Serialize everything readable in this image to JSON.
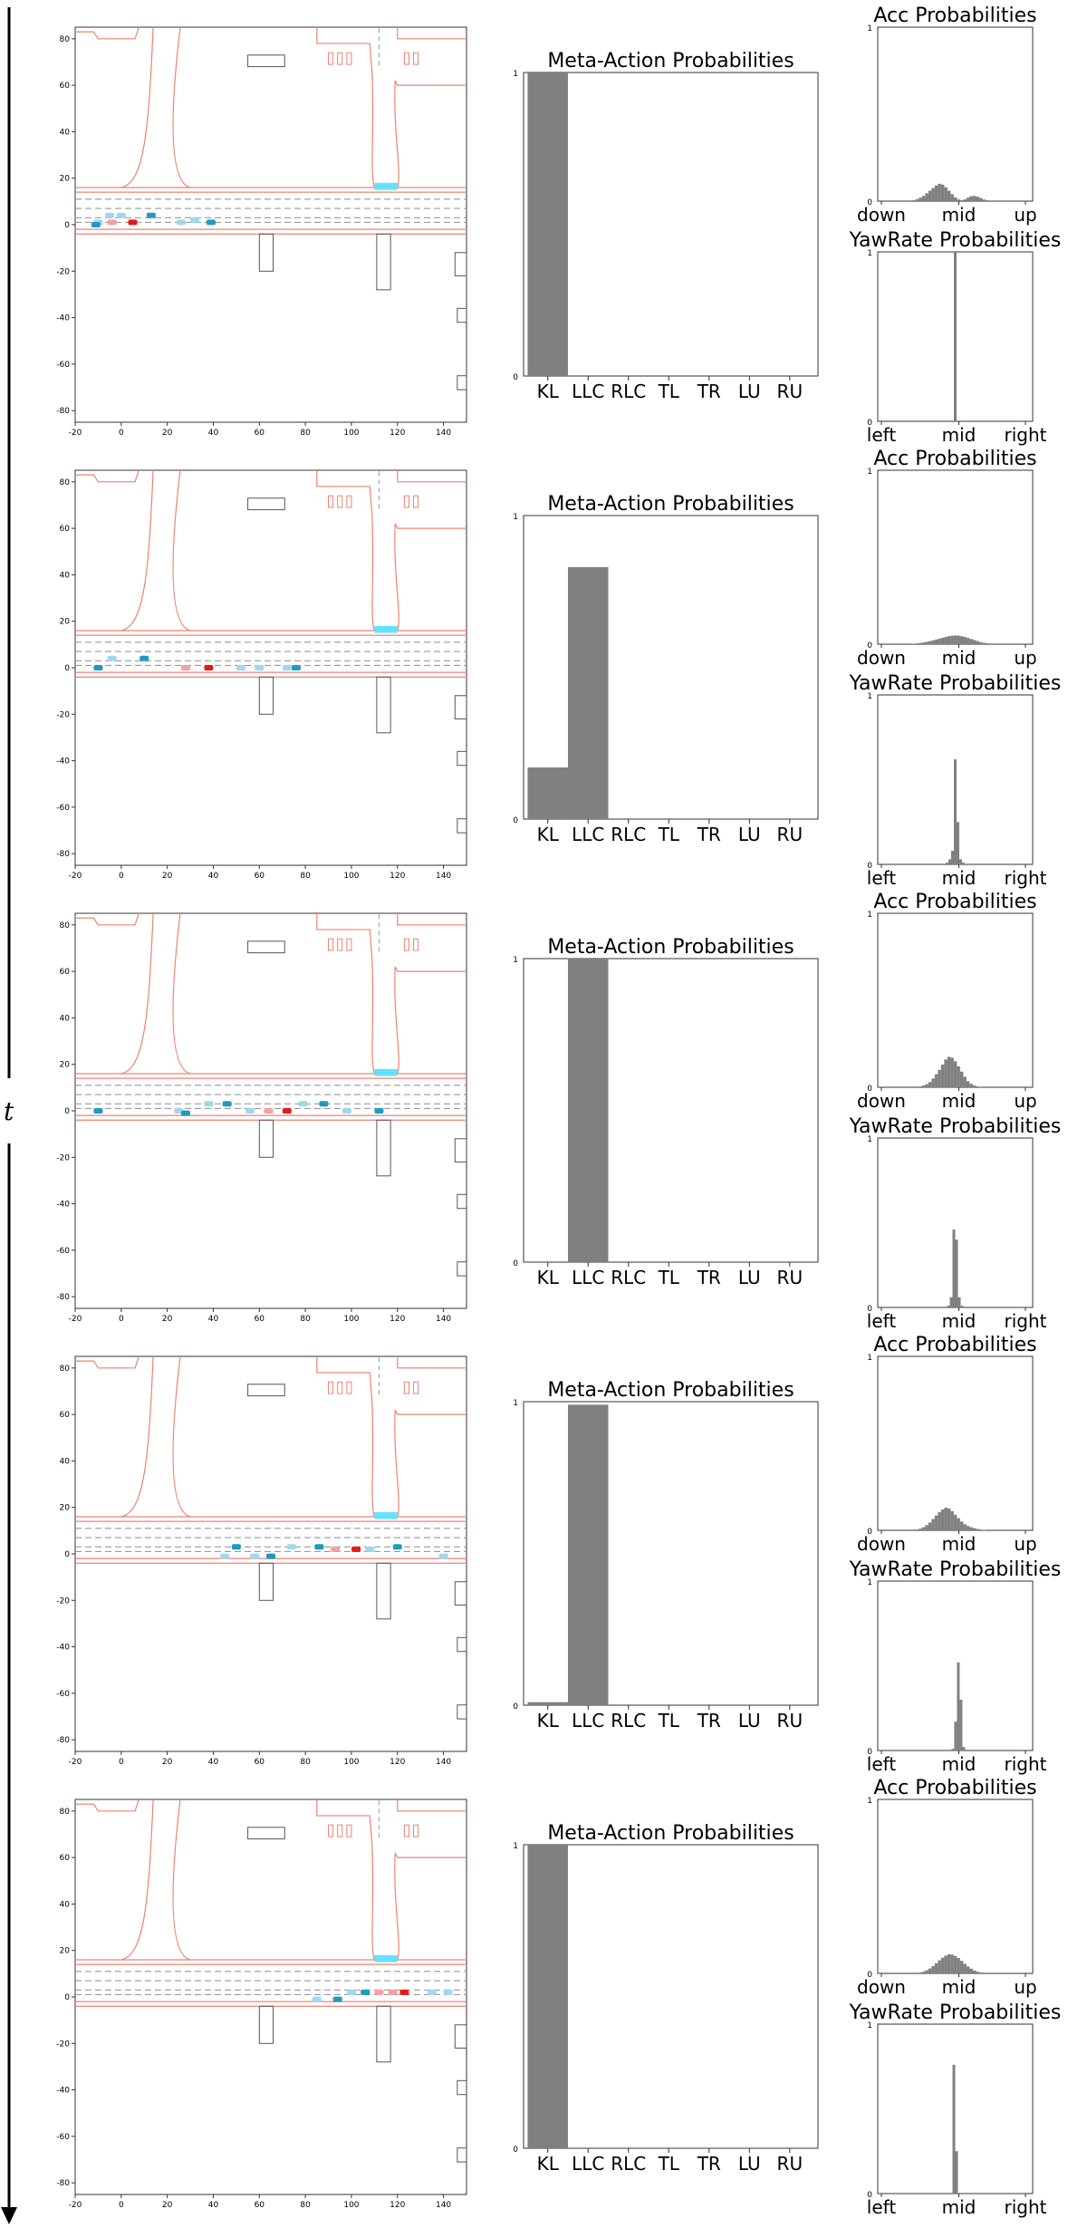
{
  "time_axis_label": "t",
  "colors": {
    "bar": "#808080",
    "road": "#f08070",
    "lane": "#999999",
    "ego": "#e41a1c",
    "ego_light": "#f4a0a0",
    "vehicle": "#1f9bbf",
    "vehicle_light": "#9fd8ee",
    "goal": "#66e0ff",
    "obstacle": "#555555"
  },
  "map_axes": {
    "x_ticks": [
      "-20",
      "0",
      "20",
      "40",
      "60",
      "80",
      "100",
      "120",
      "140"
    ],
    "y_ticks": [
      "80",
      "60",
      "40",
      "20",
      "0",
      "-20",
      "-40",
      "-60",
      "-80"
    ],
    "xlim": [
      -20,
      150
    ],
    "ylim": [
      -85,
      85
    ]
  },
  "meta_title": "Meta-Action Probabilities",
  "acc_title": "Acc Probabilities",
  "yaw_title": "YawRate Probabilities",
  "prob_ticks": [
    "0",
    "1"
  ],
  "acc_ticks": [
    "down",
    "mid",
    "up"
  ],
  "yaw_ticks": [
    "left",
    "mid",
    "right"
  ],
  "meta_categories": [
    "KL",
    "LLC",
    "RLC",
    "TL",
    "TR",
    "LU",
    "RU"
  ],
  "chart_data": [
    {
      "type": "bar",
      "title": "Meta-Action Probabilities",
      "categories": [
        "KL",
        "LLC",
        "RLC",
        "TL",
        "TR",
        "LU",
        "RU"
      ],
      "ylim": [
        0,
        1
      ],
      "frames": [
        [
          1.0,
          0,
          0,
          0,
          0,
          0,
          0
        ],
        [
          0.17,
          0.83,
          0,
          0,
          0,
          0,
          0
        ],
        [
          0,
          1.0,
          0,
          0,
          0,
          0,
          0
        ],
        [
          0.01,
          0.99,
          0,
          0,
          0,
          0,
          0
        ],
        [
          1.0,
          0,
          0,
          0,
          0,
          0,
          0
        ]
      ]
    },
    {
      "type": "bar",
      "title": "Acc Probabilities",
      "x_ticks": [
        "down",
        "mid",
        "up"
      ],
      "ylim": [
        0,
        1
      ],
      "frames": [
        [
          0.006,
          0.012,
          0.02,
          0.03,
          0.045,
          0.06,
          0.075,
          0.09,
          0.1,
          0.095,
          0.08,
          0.06,
          0.04,
          0.022,
          0.01,
          0.006,
          0.01,
          0.02,
          0.028,
          0.03,
          0.026,
          0.018,
          0.01,
          0.005
        ],
        [
          0.003,
          0.005,
          0.007,
          0.01,
          0.014,
          0.018,
          0.022,
          0.027,
          0.032,
          0.037,
          0.042,
          0.046,
          0.049,
          0.05,
          0.049,
          0.046,
          0.042,
          0.036,
          0.03,
          0.024,
          0.018,
          0.012,
          0.008,
          0.005
        ],
        [
          0.005,
          0.01,
          0.018,
          0.03,
          0.05,
          0.075,
          0.1,
          0.13,
          0.16,
          0.175,
          0.17,
          0.15,
          0.12,
          0.09,
          0.06,
          0.035,
          0.02,
          0.01,
          0.005,
          0.003
        ],
        [
          0.005,
          0.01,
          0.018,
          0.03,
          0.045,
          0.065,
          0.085,
          0.105,
          0.12,
          0.13,
          0.125,
          0.11,
          0.09,
          0.07,
          0.05,
          0.035,
          0.025,
          0.018,
          0.012,
          0.008,
          0.005,
          0.003
        ],
        [
          0.005,
          0.01,
          0.018,
          0.028,
          0.042,
          0.058,
          0.075,
          0.09,
          0.102,
          0.11,
          0.108,
          0.1,
          0.088,
          0.072,
          0.055,
          0.04,
          0.027,
          0.017,
          0.01,
          0.006
        ]
      ]
    },
    {
      "type": "bar",
      "title": "YawRate Probabilities",
      "x_ticks": [
        "left",
        "mid",
        "right"
      ],
      "ylim": [
        0,
        1
      ],
      "frames": [
        {
          "center": 0.5,
          "values": [
            1.0
          ]
        },
        {
          "center": 0.5,
          "values": [
            0.01,
            0.03,
            0.08,
            0.62,
            0.25,
            0.03,
            0.01
          ]
        },
        {
          "center": 0.5,
          "values": [
            0.01,
            0.06,
            0.46,
            0.4,
            0.06,
            0.01
          ]
        },
        {
          "center": 0.52,
          "values": [
            0.01,
            0.17,
            0.52,
            0.3,
            0.02
          ]
        },
        {
          "center": 0.5,
          "values": [
            0.76,
            0.25
          ]
        }
      ]
    }
  ]
}
